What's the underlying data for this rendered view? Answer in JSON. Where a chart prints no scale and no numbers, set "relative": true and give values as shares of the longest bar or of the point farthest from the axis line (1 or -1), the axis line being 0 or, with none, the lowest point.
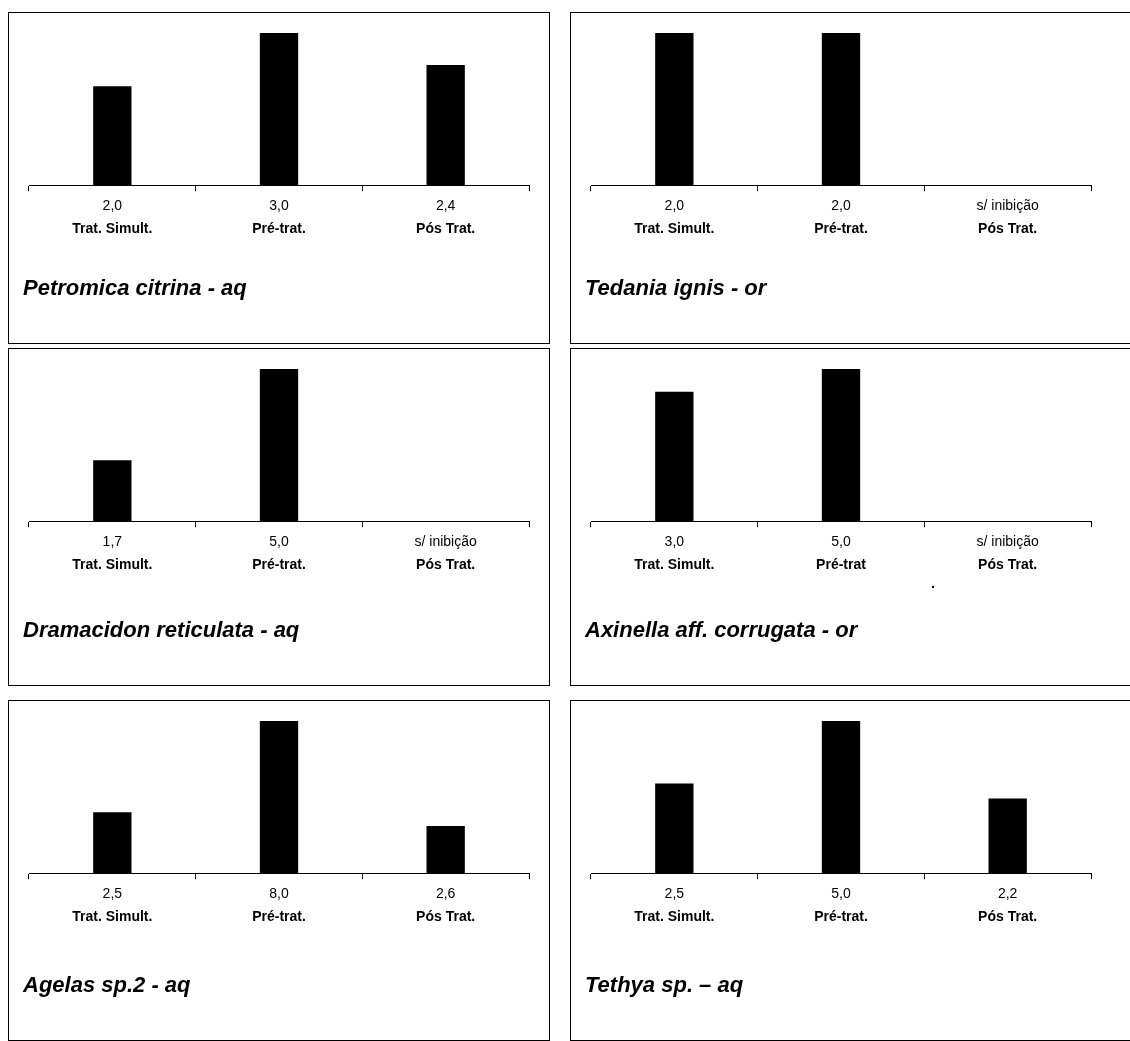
{
  "chart_data": [
    {
      "type": "bar",
      "title": "Petromica citrina - aq",
      "categories": [
        "Trat. Simult.",
        "Pré-trat.",
        "Pós Trat."
      ],
      "relative": true,
      "color": "#000000",
      "values": [
        0.65,
        1,
        0.79
      ],
      "annotations": [
        "2,0",
        "3,0",
        "2,4"
      ],
      "grid": false
    },
    {
      "type": "bar",
      "title": "Tedania ignis - or",
      "categories": [
        "Trat. Simult.",
        "Pré-trat.",
        "Pós Trat."
      ],
      "relative": true,
      "color": "#000000",
      "values": [
        1,
        1,
        null
      ],
      "annotations": [
        "2,0",
        "2,0",
        "s/ inibição"
      ],
      "grid": false
    },
    {
      "type": "bar",
      "title": "Dramacidon reticulata - aq",
      "categories": [
        "Trat. Simult.",
        "Pré-trat.",
        "Pós Trat."
      ],
      "relative": true,
      "color": "#000000",
      "values": [
        0.4,
        1,
        null
      ],
      "annotations": [
        "1,7",
        "5,0",
        "s/ inibição"
      ],
      "grid": false
    },
    {
      "type": "bar",
      "title": "Axinella aff. corrugata - or",
      "categories": [
        "Trat. Simult.",
        "Pré-trat",
        "Pós Trat."
      ],
      "relative": true,
      "color": "#000000",
      "values": [
        0.85,
        1,
        null
      ],
      "annotations": [
        "3,0",
        "5,0",
        "s/ inibição",
        "."
      ],
      "grid": false
    },
    {
      "type": "bar",
      "title": "Agelas sp.2 - aq",
      "categories": [
        "Trat. Simult.",
        "Pré-trat.",
        "Pós Trat."
      ],
      "relative": true,
      "color": "#000000",
      "values": [
        0.4,
        1,
        0.31
      ],
      "annotations": [
        "2,5",
        "8,0",
        "2,6"
      ],
      "grid": false
    },
    {
      "type": "bar",
      "title": "Tethya sp. – aq",
      "categories": [
        "Trat. Simult.",
        "Pré-trat.",
        "Pós Trat."
      ],
      "relative": true,
      "color": "#000000",
      "values": [
        0.59,
        1,
        0.49
      ],
      "annotations": [
        "2,5",
        "5,0",
        "2,2"
      ],
      "grid": false
    }
  ]
}
